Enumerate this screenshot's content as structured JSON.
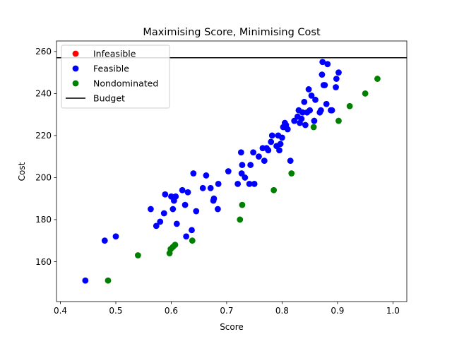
{
  "chart_data": {
    "type": "scatter",
    "title": "Maximising Score, Minimising Cost",
    "xlabel": "Score",
    "ylabel": "Cost",
    "xlim": [
      0.393,
      1.025
    ],
    "ylim": [
      141,
      265
    ],
    "x_ticks": [
      0.4,
      0.5,
      0.6,
      0.7,
      0.8,
      0.9,
      1.0
    ],
    "x_tick_labels": [
      "0.4",
      "0.5",
      "0.6",
      "0.7",
      "0.8",
      "0.9",
      "1.0"
    ],
    "y_ticks": [
      160,
      180,
      200,
      220,
      240,
      260
    ],
    "y_tick_labels": [
      "160",
      "180",
      "200",
      "220",
      "240",
      "260"
    ],
    "grid": false,
    "legend_position": "top-left",
    "legend": [
      {
        "label": "Infeasible",
        "marker": "dot",
        "color": "#ff0000"
      },
      {
        "label": "Feasible",
        "marker": "dot",
        "color": "#0000ff"
      },
      {
        "label": "Nondominated",
        "marker": "dot",
        "color": "#008000"
      },
      {
        "label": "Budget",
        "marker": "line",
        "color": "#000000"
      }
    ],
    "budget": 257,
    "series": [
      {
        "name": "Infeasible",
        "color": "#ff0000",
        "points": []
      },
      {
        "name": "Feasible",
        "color": "#0000ff",
        "points": [
          [
            0.445,
            151
          ],
          [
            0.48,
            170
          ],
          [
            0.5,
            172
          ],
          [
            0.563,
            185
          ],
          [
            0.573,
            177
          ],
          [
            0.58,
            179
          ],
          [
            0.587,
            183
          ],
          [
            0.589,
            192
          ],
          [
            0.6,
            191
          ],
          [
            0.603,
            185
          ],
          [
            0.605,
            189
          ],
          [
            0.608,
            191
          ],
          [
            0.61,
            178
          ],
          [
            0.62,
            194
          ],
          [
            0.625,
            187
          ],
          [
            0.627,
            172
          ],
          [
            0.63,
            193
          ],
          [
            0.637,
            175
          ],
          [
            0.64,
            202
          ],
          [
            0.645,
            184
          ],
          [
            0.657,
            195
          ],
          [
            0.663,
            201
          ],
          [
            0.671,
            195
          ],
          [
            0.676,
            189
          ],
          [
            0.677,
            190
          ],
          [
            0.684,
            185
          ],
          [
            0.685,
            197
          ],
          [
            0.703,
            203
          ],
          [
            0.72,
            197
          ],
          [
            0.726,
            212
          ],
          [
            0.727,
            202
          ],
          [
            0.728,
            206
          ],
          [
            0.733,
            200
          ],
          [
            0.741,
            197
          ],
          [
            0.743,
            206
          ],
          [
            0.748,
            212
          ],
          [
            0.75,
            197
          ],
          [
            0.758,
            210
          ],
          [
            0.765,
            214
          ],
          [
            0.768,
            208
          ],
          [
            0.772,
            214
          ],
          [
            0.775,
            213
          ],
          [
            0.78,
            217
          ],
          [
            0.782,
            220
          ],
          [
            0.79,
            215
          ],
          [
            0.793,
            220
          ],
          [
            0.795,
            213
          ],
          [
            0.797,
            216
          ],
          [
            0.8,
            219
          ],
          [
            0.802,
            224
          ],
          [
            0.805,
            226
          ],
          [
            0.807,
            225
          ],
          [
            0.81,
            223
          ],
          [
            0.815,
            208
          ],
          [
            0.822,
            227
          ],
          [
            0.828,
            229
          ],
          [
            0.83,
            232
          ],
          [
            0.832,
            226
          ],
          [
            0.835,
            228
          ],
          [
            0.837,
            231
          ],
          [
            0.84,
            236
          ],
          [
            0.842,
            225
          ],
          [
            0.845,
            231
          ],
          [
            0.848,
            242
          ],
          [
            0.85,
            232
          ],
          [
            0.853,
            239
          ],
          [
            0.858,
            227
          ],
          [
            0.86,
            237
          ],
          [
            0.868,
            231
          ],
          [
            0.87,
            232
          ],
          [
            0.872,
            249
          ],
          [
            0.873,
            255
          ],
          [
            0.875,
            244
          ],
          [
            0.877,
            244
          ],
          [
            0.88,
            235
          ],
          [
            0.882,
            254
          ],
          [
            0.888,
            232
          ],
          [
            0.89,
            232
          ],
          [
            0.897,
            243
          ],
          [
            0.898,
            247
          ],
          [
            0.902,
            250
          ]
        ]
      },
      {
        "name": "Nondominated",
        "color": "#008000",
        "points": [
          [
            0.486,
            151
          ],
          [
            0.54,
            163
          ],
          [
            0.597,
            164
          ],
          [
            0.599,
            166
          ],
          [
            0.603,
            167
          ],
          [
            0.607,
            168
          ],
          [
            0.638,
            170
          ],
          [
            0.724,
            180
          ],
          [
            0.728,
            187
          ],
          [
            0.785,
            194
          ],
          [
            0.817,
            202
          ],
          [
            0.857,
            224
          ],
          [
            0.902,
            227
          ],
          [
            0.922,
            234
          ],
          [
            0.95,
            240
          ],
          [
            0.972,
            247
          ]
        ]
      }
    ]
  }
}
